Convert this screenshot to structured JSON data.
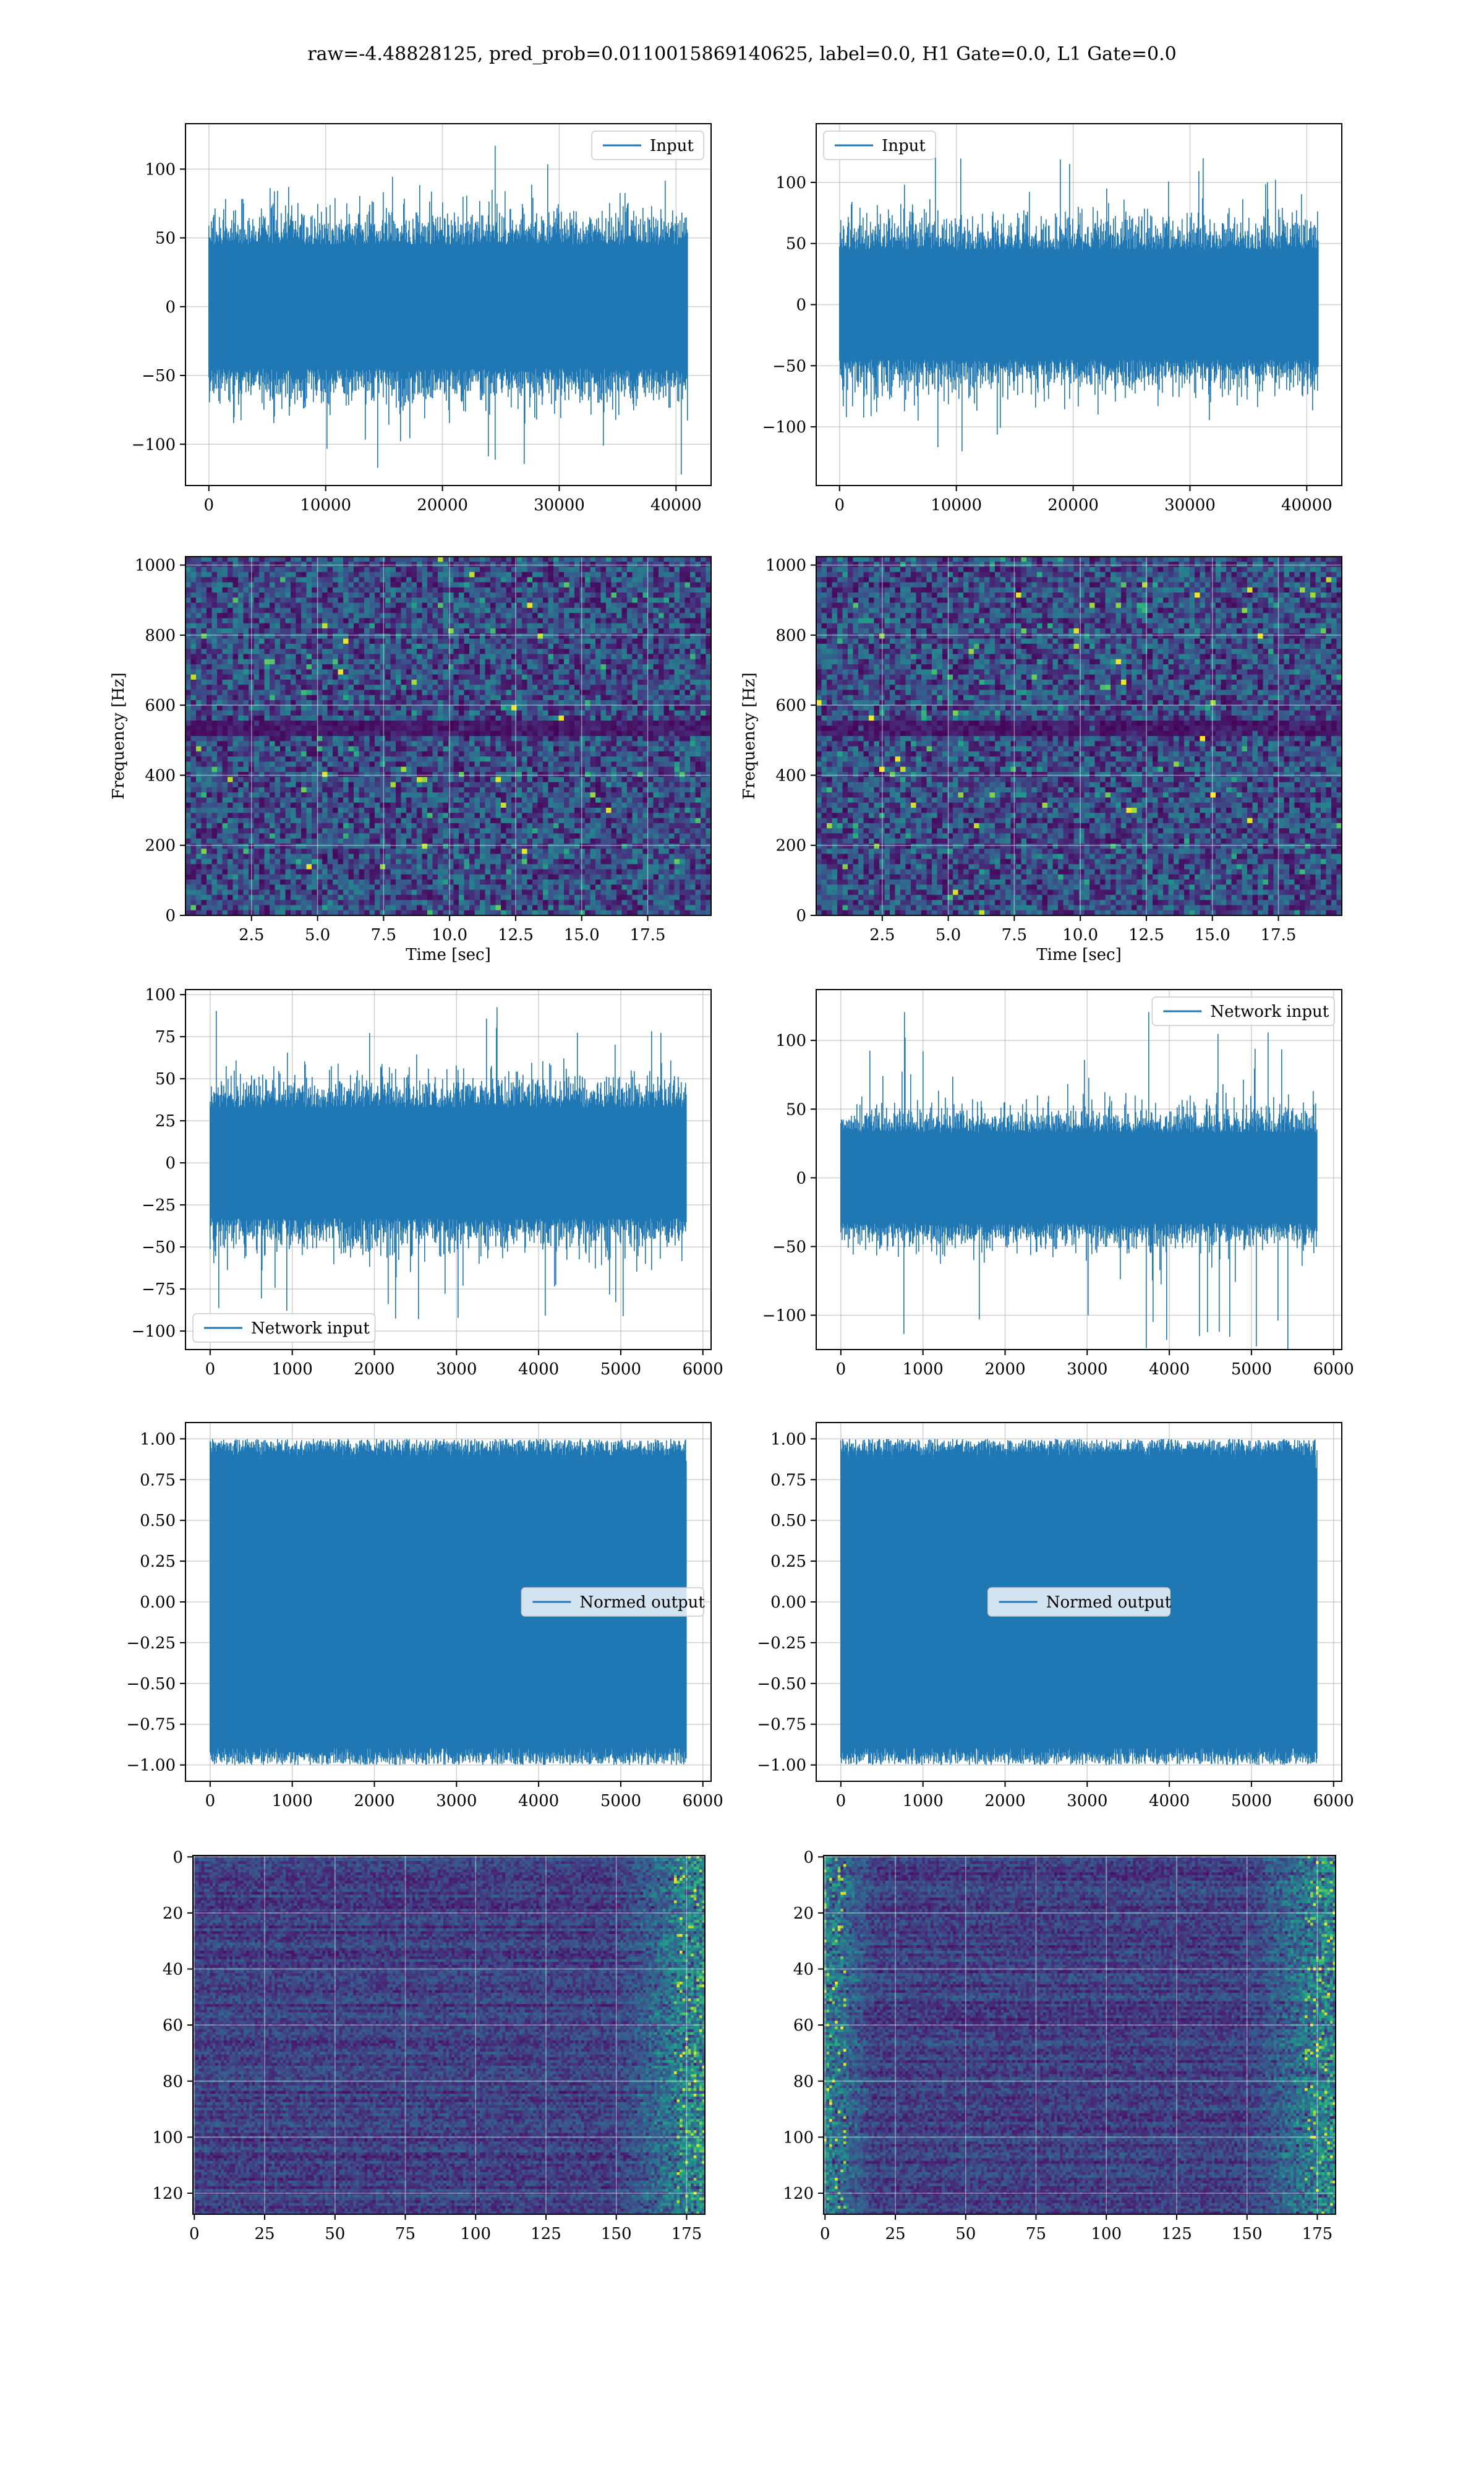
{
  "suptitle": "raw=-4.48828125, pred_prob=0.0110015869140625, label=0.0, H1 Gate=0.0, L1 Gate=0.0",
  "colors": {
    "series": "#1f77b4",
    "grid": "#b0b0b0",
    "viridis_dark": "#440154",
    "viridis_mid": "#3b528b",
    "viridis_teal": "#21918c",
    "viridis_green": "#5ec962",
    "viridis_yellow": "#fde725"
  },
  "chart_data": [
    {
      "id": "h1_input",
      "type": "line",
      "series": [
        {
          "name": "Input"
        }
      ],
      "legend": "upper right",
      "xlim": [
        -2000,
        43000
      ],
      "ylim": [
        -130,
        133
      ],
      "xticks": [
        0,
        10000,
        20000,
        30000,
        40000
      ],
      "yticks": [
        -100,
        -50,
        0,
        50,
        100
      ],
      "n_points": 40960,
      "amplitude_core": 45,
      "amplitude_peak": 122,
      "grid": true
    },
    {
      "id": "l1_input",
      "type": "line",
      "series": [
        {
          "name": "Input"
        }
      ],
      "legend": "upper left",
      "xlim": [
        -2000,
        43000
      ],
      "ylim": [
        -148,
        148
      ],
      "xticks": [
        0,
        10000,
        20000,
        30000,
        40000
      ],
      "yticks": [
        -100,
        -50,
        0,
        50,
        100
      ],
      "n_points": 40960,
      "amplitude_core": 45,
      "amplitude_peak": 128,
      "grid": true
    },
    {
      "id": "h1_spectrogram",
      "type": "heatmap",
      "xlabel": "Time [sec]",
      "ylabel": "Frequency [Hz]",
      "xlim": [
        0,
        19.9
      ],
      "ylim": [
        0,
        1024
      ],
      "xticks": [
        2.5,
        5.0,
        7.5,
        10.0,
        12.5,
        15.0,
        17.5
      ],
      "xtick_labels": [
        "2.5",
        "5.0",
        "7.5",
        "10.0",
        "12.5",
        "15.0",
        "17.5"
      ],
      "yticks": [
        0,
        200,
        400,
        600,
        800,
        1000
      ],
      "colormap": "viridis",
      "grid": true
    },
    {
      "id": "l1_spectrogram",
      "type": "heatmap",
      "xlabel": "Time [sec]",
      "ylabel": "Frequency [Hz]",
      "xlim": [
        0,
        19.9
      ],
      "ylim": [
        0,
        1024
      ],
      "xticks": [
        2.5,
        5.0,
        7.5,
        10.0,
        12.5,
        15.0,
        17.5
      ],
      "xtick_labels": [
        "2.5",
        "5.0",
        "7.5",
        "10.0",
        "12.5",
        "15.0",
        "17.5"
      ],
      "yticks": [
        0,
        200,
        400,
        600,
        800,
        1000
      ],
      "colormap": "viridis",
      "grid": true
    },
    {
      "id": "h1_network_input",
      "type": "line",
      "series": [
        {
          "name": "Network input"
        }
      ],
      "legend": "lower left",
      "xlim": [
        -300,
        6100
      ],
      "ylim": [
        -111,
        103
      ],
      "xticks": [
        0,
        1000,
        2000,
        3000,
        4000,
        5000,
        6000
      ],
      "yticks": [
        -100,
        -75,
        -50,
        -25,
        0,
        25,
        50,
        75,
        100
      ],
      "n_points": 5800,
      "amplitude_core": 33,
      "amplitude_peak": 95,
      "grid": true
    },
    {
      "id": "l1_network_input",
      "type": "line",
      "series": [
        {
          "name": "Network input"
        }
      ],
      "legend": "upper right",
      "xlim": [
        -300,
        6100
      ],
      "ylim": [
        -125,
        137
      ],
      "xticks": [
        0,
        1000,
        2000,
        3000,
        4000,
        5000,
        6000
      ],
      "yticks": [
        -100,
        -50,
        0,
        50,
        100
      ],
      "n_points": 5800,
      "amplitude_core": 33,
      "amplitude_peak": 127,
      "grid": true
    },
    {
      "id": "h1_normed_output",
      "type": "line",
      "series": [
        {
          "name": "Normed output"
        }
      ],
      "legend": "center right",
      "xlim": [
        -300,
        6100
      ],
      "ylim": [
        -1.1,
        1.1
      ],
      "xticks": [
        0,
        1000,
        2000,
        3000,
        4000,
        5000,
        6000
      ],
      "yticks": [
        -1.0,
        -0.75,
        -0.5,
        -0.25,
        0.0,
        0.25,
        0.5,
        0.75,
        1.0
      ],
      "ytick_labels": [
        "−1.00",
        "−0.75",
        "−0.50",
        "−0.25",
        "0.00",
        "0.25",
        "0.50",
        "0.75",
        "1.00"
      ],
      "n_points": 5800,
      "amplitude_core": 0.95,
      "amplitude_peak": 1.0,
      "grid": true
    },
    {
      "id": "l1_normed_output",
      "type": "line",
      "series": [
        {
          "name": "Normed output"
        }
      ],
      "legend": "center",
      "xlim": [
        -300,
        6100
      ],
      "ylim": [
        -1.1,
        1.1
      ],
      "xticks": [
        0,
        1000,
        2000,
        3000,
        4000,
        5000,
        6000
      ],
      "yticks": [
        -1.0,
        -0.75,
        -0.5,
        -0.25,
        0.0,
        0.25,
        0.5,
        0.75,
        1.0
      ],
      "ytick_labels": [
        "−1.00",
        "−0.75",
        "−0.50",
        "−0.25",
        "0.00",
        "0.25",
        "0.50",
        "0.75",
        "1.00"
      ],
      "n_points": 5800,
      "amplitude_core": 0.95,
      "amplitude_peak": 1.0,
      "grid": true
    },
    {
      "id": "h1_feature_map",
      "type": "heatmap",
      "xlim": [
        -0.5,
        181.5
      ],
      "ylim": [
        127.5,
        -0.5
      ],
      "xticks": [
        0,
        25,
        50,
        75,
        100,
        125,
        150,
        175
      ],
      "yticks": [
        0,
        20,
        40,
        60,
        80,
        100,
        120
      ],
      "colormap": "viridis",
      "grid": true
    },
    {
      "id": "l1_feature_map",
      "type": "heatmap",
      "xlim": [
        -0.5,
        181.5
      ],
      "ylim": [
        127.5,
        -0.5
      ],
      "xticks": [
        0,
        25,
        50,
        75,
        100,
        125,
        150,
        175
      ],
      "yticks": [
        0,
        20,
        40,
        60,
        80,
        100,
        120
      ],
      "colormap": "viridis",
      "grid": true
    }
  ]
}
